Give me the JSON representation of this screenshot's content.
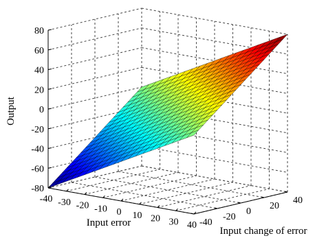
{
  "chart_data": {
    "type": "surface",
    "title": "",
    "xlabel": "Input error",
    "ylabel": "Input change of error",
    "zlabel": "Output",
    "x_ticks": [
      "-40",
      "-30",
      "-20",
      "-10",
      "0",
      "10",
      "20",
      "30",
      "40"
    ],
    "y_ticks": [
      "-40",
      "-20",
      "0",
      "20",
      "40"
    ],
    "z_ticks": [
      "-80",
      "-60",
      "-40",
      "-20",
      "0",
      "20",
      "40",
      "60",
      "80"
    ],
    "xlim": [
      -40,
      40
    ],
    "ylim": [
      -40,
      40
    ],
    "zlim": [
      -80,
      80
    ],
    "grid": true,
    "colormap": "jet",
    "surface": {
      "relation": "output = input_error + input_change_of_error",
      "corners": [
        {
          "x": -40,
          "y": -40,
          "z": -80
        },
        {
          "x": 40,
          "y": -40,
          "z": 0
        },
        {
          "x": -40,
          "y": 40,
          "z": 0
        },
        {
          "x": 40,
          "y": 40,
          "z": 80
        }
      ]
    }
  }
}
